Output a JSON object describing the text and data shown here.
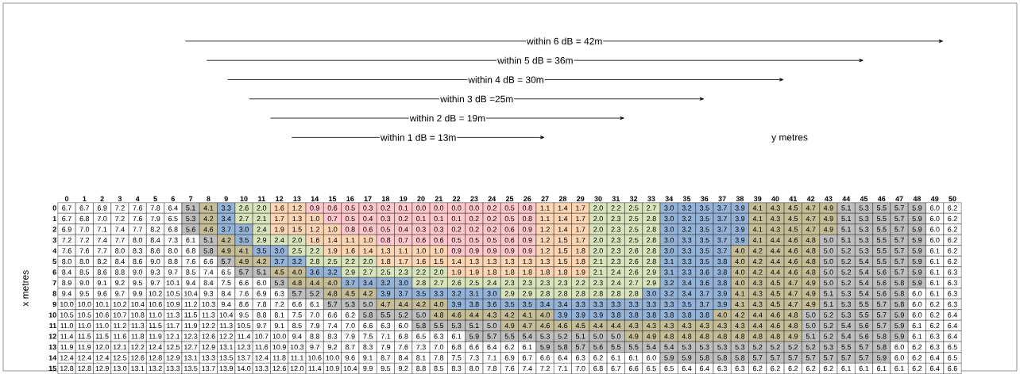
{
  "chart_data": {
    "type": "heatmap",
    "ylabel": "x metres",
    "categories": [
      "0",
      "1",
      "2",
      "3",
      "4",
      "5",
      "6",
      "7",
      "8",
      "9",
      "10",
      "11",
      "12",
      "13",
      "14",
      "15",
      "16",
      "17",
      "18",
      "19",
      "20",
      "21",
      "22",
      "23",
      "24",
      "25",
      "26",
      "27",
      "28",
      "29",
      "30",
      "31",
      "32",
      "33",
      "34",
      "35",
      "36",
      "37",
      "38",
      "39",
      "40",
      "41",
      "42",
      "43",
      "44",
      "45",
      "46",
      "47",
      "48",
      "49",
      "50"
    ],
    "y_categories": [
      "0",
      "1",
      "2",
      "3",
      "4",
      "5",
      "6",
      "7",
      "8",
      "9",
      "10",
      "11",
      "12",
      "13",
      "14",
      "15"
    ],
    "colors": [
      "#ffc7ce",
      "#fcd5b4",
      "#d8e4bc",
      "#95b3d7",
      "#c4bd97",
      "#bfbfbf",
      "#ffffff"
    ],
    "data_labels": true,
    "annotations": [
      "within 6 dB = 42m",
      "within 5 dB = 36m",
      "within 4 dB = 30m",
      "within 3 dB =25m",
      "within 2 dB = 19m",
      "within 1 dB = 13m",
      "y metres"
    ],
    "cells": [
      [
        6.7,
        6.7,
        6.9,
        7.2,
        7.6,
        7.8,
        6.4,
        5.1,
        4.1,
        3.3,
        2.6,
        2.0,
        1.6,
        1.2,
        0.9,
        0.6,
        0.5,
        0.3,
        0.2,
        0.1,
        0.0,
        0.0,
        0.0,
        0.0,
        0.2,
        0.5,
        0.8,
        1.1,
        1.4,
        1.7,
        2.0,
        2.2,
        2.5,
        2.7,
        3.0,
        3.2,
        3.5,
        3.7,
        3.9,
        4.1,
        4.3,
        4.5,
        4.7,
        4.9,
        5.1,
        5.3,
        5.5,
        5.7,
        5.9,
        6.0,
        6.2
      ],
      [
        6.7,
        6.8,
        7.0,
        7.2,
        7.6,
        7.9,
        6.5,
        5.3,
        4.2,
        3.4,
        2.7,
        2.1,
        1.7,
        1.3,
        1.0,
        0.7,
        0.5,
        0.4,
        0.3,
        0.2,
        0.1,
        0.1,
        0.1,
        0.2,
        0.2,
        0.5,
        0.8,
        1.1,
        1.4,
        1.7,
        2.0,
        2.3,
        2.5,
        2.8,
        3.0,
        3.2,
        3.5,
        3.7,
        3.9,
        4.1,
        4.3,
        4.5,
        4.7,
        4.9,
        5.1,
        5.3,
        5.5,
        5.7,
        5.9,
        6.0,
        6.2
      ],
      [
        6.9,
        7.0,
        7.1,
        7.4,
        7.7,
        8.2,
        6.8,
        5.6,
        4.6,
        3.7,
        3.0,
        2.4,
        1.9,
        1.5,
        1.2,
        1.0,
        0.8,
        0.6,
        0.5,
        0.4,
        0.3,
        0.3,
        0.2,
        0.2,
        0.2,
        0.6,
        0.9,
        1.2,
        1.4,
        1.7,
        2.0,
        2.3,
        2.5,
        2.8,
        3.0,
        3.2,
        3.5,
        3.7,
        3.9,
        4.1,
        4.3,
        4.5,
        4.7,
        4.9,
        5.1,
        5.3,
        5.5,
        5.7,
        5.9,
        6.0,
        6.2
      ],
      [
        7.2,
        7.2,
        7.4,
        7.7,
        8.0,
        8.4,
        7.3,
        6.1,
        5.1,
        4.2,
        3.5,
        2.9,
        2.4,
        2.0,
        1.6,
        1.4,
        1.1,
        1.0,
        0.8,
        0.7,
        0.6,
        0.6,
        0.5,
        0.5,
        0.5,
        0.6,
        0.9,
        1.2,
        1.5,
        1.7,
        2.0,
        2.3,
        2.5,
        2.8,
        3.0,
        3.3,
        3.5,
        3.7,
        3.9,
        4.1,
        4.4,
        4.6,
        4.8,
        5.0,
        5.1,
        5.3,
        5.5,
        5.7,
        5.9,
        6.0,
        6.2
      ],
      [
        7.6,
        7.6,
        7.7,
        8.0,
        8.3,
        8.6,
        8.0,
        6.8,
        5.8,
        4.9,
        4.1,
        3.5,
        3.0,
        2.5,
        2.2,
        1.9,
        1.6,
        1.4,
        1.3,
        1.1,
        1.0,
        1.0,
        0.9,
        0.9,
        0.9,
        0.9,
        0.9,
        1.2,
        1.5,
        1.8,
        2.0,
        2.3,
        2.6,
        2.8,
        3.0,
        3.3,
        3.5,
        3.7,
        4.0,
        4.2,
        4.4,
        4.6,
        4.8,
        5.0,
        5.2,
        5.3,
        5.5,
        5.7,
        5.9,
        6.1,
        6.2
      ],
      [
        8.0,
        8.0,
        8.2,
        8.4,
        8.6,
        9.0,
        8.8,
        7.6,
        6.6,
        5.7,
        4.9,
        4.2,
        3.7,
        3.2,
        2.8,
        2.5,
        2.2,
        2.0,
        1.8,
        1.7,
        1.6,
        1.5,
        1.4,
        1.3,
        1.3,
        1.3,
        1.3,
        1.3,
        1.5,
        1.8,
        2.1,
        2.3,
        2.6,
        2.8,
        3.1,
        3.3,
        3.5,
        3.8,
        4.0,
        4.2,
        4.4,
        4.6,
        4.8,
        5.0,
        5.2,
        5.4,
        5.5,
        5.7,
        5.9,
        6.1,
        6.2
      ],
      [
        8.4,
        8.5,
        8.6,
        8.8,
        9.0,
        9.3,
        9.7,
        8.5,
        7.4,
        6.5,
        5.7,
        5.1,
        4.5,
        4.0,
        3.6,
        3.2,
        2.9,
        2.7,
        2.5,
        2.3,
        2.2,
        2.0,
        1.9,
        1.9,
        1.8,
        1.8,
        1.8,
        1.8,
        1.8,
        1.9,
        2.1,
        2.4,
        2.6,
        2.9,
        3.1,
        3.3,
        3.6,
        3.8,
        4.0,
        4.2,
        4.4,
        4.6,
        4.8,
        5.0,
        5.2,
        5.4,
        5.6,
        5.7,
        5.9,
        6.1,
        6.3
      ],
      [
        8.9,
        9.0,
        9.1,
        9.2,
        9.5,
        9.7,
        10.1,
        9.4,
        8.4,
        7.5,
        6.6,
        6.0,
        5.3,
        4.8,
        4.4,
        4.0,
        3.7,
        3.4,
        3.2,
        3.0,
        2.8,
        2.7,
        2.6,
        2.5,
        2.4,
        2.3,
        2.3,
        2.3,
        2.3,
        2.2,
        2.3,
        2.4,
        2.7,
        2.9,
        3.2,
        3.4,
        3.6,
        3.8,
        4.0,
        4.3,
        4.5,
        4.7,
        4.9,
        5.0,
        5.2,
        5.4,
        5.6,
        5.8,
        5.9,
        6.1,
        6.3
      ],
      [
        9.4,
        9.5,
        9.6,
        9.7,
        9.9,
        10.2,
        10.5,
        10.4,
        9.3,
        8.4,
        7.6,
        6.9,
        6.3,
        5.7,
        5.2,
        4.8,
        4.5,
        4.2,
        3.9,
        3.7,
        3.5,
        3.3,
        3.2,
        3.1,
        3.0,
        2.9,
        2.9,
        2.8,
        2.8,
        2.8,
        2.8,
        2.8,
        2.8,
        3.0,
        3.2,
        3.4,
        3.7,
        3.9,
        4.1,
        4.3,
        4.5,
        4.7,
        4.9,
        5.1,
        5.3,
        5.4,
        5.6,
        5.8,
        6.0,
        6.1,
        6.3
      ],
      [
        10.0,
        10.0,
        10.1,
        10.2,
        10.4,
        10.6,
        10.9,
        11.2,
        10.3,
        9.4,
        8.6,
        7.8,
        7.2,
        6.6,
        6.1,
        5.7,
        5.3,
        5.0,
        4.7,
        4.4,
        4.2,
        4.0,
        3.9,
        3.8,
        3.6,
        3.5,
        3.5,
        3.4,
        3.4,
        3.3,
        3.3,
        3.3,
        3.3,
        3.3,
        3.3,
        3.5,
        3.7,
        3.9,
        4.1,
        4.3,
        4.5,
        4.7,
        4.9,
        5.1,
        5.3,
        5.5,
        5.7,
        5.8,
        6.0,
        6.2,
        6.3
      ],
      [
        10.5,
        10.5,
        10.6,
        10.7,
        10.8,
        11.0,
        11.3,
        11.5,
        11.3,
        10.4,
        9.5,
        8.8,
        8.1,
        7.5,
        7.0,
        6.6,
        6.2,
        5.8,
        5.5,
        5.2,
        5.0,
        4.8,
        4.6,
        4.4,
        4.3,
        4.2,
        4.1,
        4.0,
        3.9,
        3.9,
        3.9,
        3.8,
        3.8,
        3.8,
        3.8,
        3.8,
        3.8,
        4.0,
        4.2,
        4.4,
        4.6,
        4.8,
        5.0,
        5.2,
        5.3,
        5.5,
        5.7,
        5.9,
        6.0,
        6.2,
        6.4
      ],
      [
        11.0,
        11.0,
        11.0,
        11.2,
        11.3,
        11.5,
        11.7,
        11.9,
        12.2,
        11.3,
        10.5,
        9.7,
        9.1,
        8.5,
        7.9,
        7.4,
        7.0,
        6.6,
        6.3,
        6.0,
        5.8,
        5.5,
        5.3,
        5.1,
        5.0,
        4.9,
        4.7,
        4.6,
        4.6,
        4.5,
        4.4,
        4.4,
        4.3,
        4.3,
        4.3,
        4.3,
        4.3,
        4.3,
        4.3,
        4.4,
        4.6,
        4.8,
        5.0,
        5.2,
        5.4,
        5.6,
        5.7,
        5.9,
        6.1,
        6.2,
        6.4
      ],
      [
        11.4,
        11.5,
        11.5,
        11.6,
        11.8,
        11.9,
        12.1,
        12.3,
        12.6,
        12.2,
        11.4,
        10.7,
        10.0,
        9.4,
        8.8,
        8.3,
        7.9,
        7.5,
        7.1,
        6.8,
        6.5,
        6.3,
        6.1,
        5.9,
        5.7,
        5.5,
        5.4,
        5.3,
        5.2,
        5.1,
        5.0,
        5.0,
        4.9,
        4.9,
        4.8,
        4.8,
        4.8,
        4.8,
        4.8,
        4.8,
        4.8,
        4.9,
        5.1,
        5.2,
        5.4,
        5.6,
        5.8,
        5.9,
        6.1,
        6.3,
        6.4
      ],
      [
        11.9,
        11.9,
        12.0,
        12.1,
        12.2,
        12.4,
        12.5,
        12.7,
        12.9,
        13.1,
        12.3,
        11.6,
        10.9,
        10.3,
        9.7,
        9.2,
        8.7,
        8.3,
        7.9,
        7.6,
        7.3,
        7.0,
        6.8,
        6.6,
        6.4,
        6.2,
        6.1,
        5.9,
        5.8,
        5.7,
        5.6,
        5.5,
        5.5,
        5.4,
        5.4,
        5.3,
        5.3,
        5.3,
        5.3,
        5.2,
        5.2,
        5.2,
        5.2,
        5.3,
        5.5,
        5.7,
        5.8,
        6.0,
        6.2,
        6.3,
        6.5
      ],
      [
        12.4,
        12.4,
        12.4,
        12.5,
        12.6,
        12.8,
        12.9,
        13.1,
        13.3,
        13.5,
        13.7,
        12.4,
        11.8,
        11.1,
        10.6,
        10.0,
        9.6,
        9.1,
        8.7,
        8.4,
        8.1,
        7.8,
        7.5,
        7.3,
        7.1,
        6.9,
        6.7,
        6.6,
        6.4,
        6.3,
        6.2,
        6.1,
        6.1,
        6.0,
        5.9,
        5.9,
        5.8,
        5.8,
        5.8,
        5.7,
        5.7,
        5.7,
        5.7,
        5.7,
        5.7,
        5.7,
        5.9,
        6.0,
        6.2,
        6.4,
        6.5
      ],
      [
        12.8,
        12.8,
        12.9,
        13.0,
        13.1,
        13.2,
        13.3,
        13.5,
        13.7,
        13.9,
        14.0,
        13.3,
        12.6,
        12.0,
        11.4,
        10.9,
        10.4,
        9.9,
        9.5,
        9.2,
        8.8,
        8.5,
        8.3,
        8.0,
        7.8,
        7.6,
        7.4,
        7.2,
        7.1,
        7.0,
        6.8,
        6.7,
        6.6,
        6.5,
        6.5,
        6.4,
        6.4,
        6.3,
        6.3,
        6.2,
        6.2,
        6.2,
        6.2,
        6.2,
        6.1,
        6.1,
        6.1,
        6.1,
        6.2,
        6.4,
        6.6
      ]
    ],
    "cell_labels": [
      [
        "6.7",
        "6.7",
        "6.9",
        "7.2",
        "7.6",
        "7.8",
        "6.4",
        "5.1",
        "4.1",
        "3.3",
        "2.6",
        "2.0",
        "1.6",
        "1.2",
        "0.9",
        "0.6",
        "0.5",
        "0.3",
        "0.2",
        "0.1",
        "0.0",
        "0.0",
        "0.0",
        "0.0",
        "0.2",
        "0.5",
        "0.8",
        "1.1",
        "1.4",
        "1.7",
        "2.0",
        "2.2",
        "2.5",
        "2.7",
        "3.0",
        "3.2",
        "3.5",
        "3.7",
        "3.9",
        "4.1",
        "4.3",
        "4.5",
        "4.7",
        "4.9",
        "5.1",
        "5.3",
        "5.5",
        "5.7",
        "5.9",
        "6.0",
        "6.2"
      ],
      [
        "6.7",
        "6.8",
        "7.0",
        "7.2",
        "7.6",
        "7.9",
        "6.5",
        "5.3",
        "4.2",
        "3.4",
        "2.7",
        "2.1",
        "1.7",
        "1.3",
        "1.0",
        "0.7",
        "0.5",
        "0.4",
        "0.3",
        "0.2",
        "0.1",
        "0.1",
        "0.1",
        "0.2",
        "0.2",
        "0.5",
        "0.8",
        "1.1",
        "1.4",
        "1.7",
        "2.0",
        "2.3",
        "2.5",
        "2.8",
        "3.0",
        "3.2",
        "3.5",
        "3.7",
        "3.9",
        "4.1",
        "4.3",
        "4.5",
        "4.7",
        "4.9",
        "5.1",
        "5.3",
        "5.5",
        "5.7",
        "5.9",
        "6.0",
        "6.2"
      ],
      [
        "6.9",
        "7.0",
        "7.1",
        "7.4",
        "7.7",
        "8.2",
        "6.8",
        "5.6",
        "4.6",
        "3.7",
        "3.0",
        "2.4",
        "1.9",
        "1.5",
        "1.2",
        "1.0",
        "0.8",
        "0.6",
        "0.5",
        "0.4",
        "0.3",
        "0.3",
        "0.2",
        "0.2",
        "0.2",
        "0.6",
        "0.9",
        "1.2",
        "1.4",
        "1.7",
        "2.0",
        "2.3",
        "2.5",
        "2.8",
        "3.0",
        "3.2",
        "3.5",
        "3.7",
        "3.9",
        "4.1",
        "4.3",
        "4.5",
        "4.7",
        "4.9",
        "5.1",
        "5.3",
        "5.5",
        "5.7",
        "5.9",
        "6.0",
        "6.2"
      ],
      [
        "7.2",
        "7.2",
        "7.4",
        "7.7",
        "8.0",
        "8.4",
        "7.3",
        "6.1",
        "5.1",
        "4.2",
        "3.5",
        "2.9",
        "2.4",
        "2.0",
        "1.6",
        "1.4",
        "1.1",
        "1.0",
        "0.8",
        "0.7",
        "0.6",
        "0.6",
        "0.5",
        "0.5",
        "0.5",
        "0.6",
        "0.9",
        "1.2",
        "1.5",
        "1.7",
        "2.0",
        "2.3",
        "2.5",
        "2.8",
        "3.0",
        "3.3",
        "3.5",
        "3.7",
        "3.9",
        "4.1",
        "4.4",
        "4.6",
        "4.8",
        "5.0",
        "5.1",
        "5.3",
        "5.5",
        "5.7",
        "5.9",
        "6.0",
        "6.2"
      ],
      [
        "7.6",
        "7.6",
        "7.7",
        "8.0",
        "8.3",
        "8.6",
        "8.0",
        "6.8",
        "5.8",
        "4.9",
        "4.1",
        "3.5",
        "3.0",
        "2.5",
        "2.2",
        "1.9",
        "1.6",
        "1.4",
        "1.3",
        "1.1",
        "1.0",
        "1.0",
        "0.9",
        "0.9",
        "0.9",
        "0.9",
        "0.9",
        "1.2",
        "1.5",
        "1.8",
        "2.0",
        "2.3",
        "2.6",
        "2.8",
        "3.0",
        "3.3",
        "3.5",
        "3.7",
        "4.0",
        "4.2",
        "4.4",
        "4.6",
        "4.8",
        "5.0",
        "5.2",
        "5.3",
        "5.5",
        "5.7",
        "5.9",
        "6.1",
        "6.2"
      ],
      [
        "8.0",
        "8.0",
        "8.2",
        "8.4",
        "8.6",
        "9.0",
        "8.8",
        "7.6",
        "6.6",
        "5.7",
        "4.9",
        "4.2",
        "3.7",
        "3.2",
        "2.8",
        "2.5",
        "2.2",
        "2.0",
        "1.8",
        "1.7",
        "1.6",
        "1.5",
        "1.4",
        "1.3",
        "1.3",
        "1.3",
        "1.3",
        "1.3",
        "1.5",
        "1.8",
        "2.1",
        "2.3",
        "2.6",
        "2.8",
        "3.1",
        "3.3",
        "3.5",
        "3.8",
        "4.0",
        "4.2",
        "4.4",
        "4.6",
        "4.8",
        "5.0",
        "5.2",
        "5.4",
        "5.5",
        "5.7",
        "5.9",
        "6.1",
        "6.2"
      ],
      [
        "8.4",
        "8.5",
        "8.6",
        "8.8",
        "9.0",
        "9.3",
        "9.7",
        "8.5",
        "7.4",
        "6.5",
        "5.7",
        "5.1",
        "4.5",
        "4.0",
        "3.6",
        "3.2",
        "2.9",
        "2.7",
        "2.5",
        "2.3",
        "2.2",
        "2.0",
        "1.9",
        "1.9",
        "1.8",
        "1.8",
        "1.8",
        "1.8",
        "1.8",
        "1.9",
        "2.1",
        "2.4",
        "2.6",
        "2.9",
        "3.1",
        "3.3",
        "3.6",
        "3.8",
        "4.0",
        "4.2",
        "4.4",
        "4.6",
        "4.8",
        "5.0",
        "5.2",
        "5.4",
        "5.6",
        "5.7",
        "5.9",
        "6.1",
        "6.3"
      ],
      [
        "8.9",
        "9.0",
        "9.1",
        "9.2",
        "9.5",
        "9.7",
        "10.1",
        "9.4",
        "8.4",
        "7.5",
        "6.6",
        "6.0",
        "5.3",
        "4.8",
        "4.4",
        "4.0",
        "3.7",
        "3.4",
        "3.2",
        "3.0",
        "2.8",
        "2.7",
        "2.6",
        "2.5",
        "2.4",
        "2.3",
        "2.3",
        "2.3",
        "2.3",
        "2.2",
        "2.3",
        "2.4",
        "2.7",
        "2.9",
        "3.2",
        "3.4",
        "3.6",
        "3.8",
        "4.0",
        "4.3",
        "4.5",
        "4.7",
        "4.9",
        "5.0",
        "5.2",
        "5.4",
        "5.6",
        "5.8",
        "5.9",
        "6.1",
        "6.3"
      ],
      [
        "9.4",
        "9.5",
        "9.6",
        "9.7",
        "9.9",
        "10.2",
        "10.5",
        "10.4",
        "9.3",
        "8.4",
        "7.6",
        "6.9",
        "6.3",
        "5.7",
        "5.2",
        "4.8",
        "4.5",
        "4.2",
        "3.9",
        "3.7",
        "3.5",
        "3.3",
        "3.2",
        "3.1",
        "3.0",
        "2.9",
        "2.9",
        "2.8",
        "2.8",
        "2.8",
        "2.8",
        "2.8",
        "2.8",
        "3.0",
        "3.2",
        "3.4",
        "3.7",
        "3.9",
        "4.1",
        "4.3",
        "4.5",
        "4.7",
        "4.9",
        "5.1",
        "5.3",
        "5.4",
        "5.6",
        "5.8",
        "6.0",
        "6.1",
        "6.3"
      ],
      [
        "10.0",
        "10.0",
        "10.1",
        "10.2",
        "10.4",
        "10.6",
        "10.9",
        "11.2",
        "10.3",
        "9.4",
        "8.6",
        "7.8",
        "7.2",
        "6.6",
        "6.1",
        "5.7",
        "5.3",
        "5.0",
        "4.7",
        "4.4",
        "4.2",
        "4.0",
        "3.9",
        "3.8",
        "3.6",
        "3.5",
        "3.5",
        "3.4",
        "3.4",
        "3.3",
        "3.3",
        "3.3",
        "3.3",
        "3.3",
        "3.3",
        "3.5",
        "3.7",
        "3.9",
        "4.1",
        "4.3",
        "4.5",
        "4.7",
        "4.9",
        "5.1",
        "5.3",
        "5.5",
        "5.7",
        "5.8",
        "6.0",
        "6.2",
        "6.3"
      ],
      [
        "10.5",
        "10.5",
        "10.6",
        "10.7",
        "10.8",
        "11.0",
        "11.3",
        "11.5",
        "11.3",
        "10.4",
        "9.5",
        "8.8",
        "8.1",
        "7.5",
        "7.0",
        "6.6",
        "6.2",
        "5.8",
        "5.5",
        "5.2",
        "5.0",
        "4.8",
        "4.6",
        "4.4",
        "4.3",
        "4.2",
        "4.1",
        "4.0",
        "3.9",
        "3.9",
        "3.9",
        "3.8",
        "3.8",
        "3.8",
        "3.8",
        "3.8",
        "3.8",
        "4.0",
        "4.2",
        "4.4",
        "4.6",
        "4.8",
        "5.0",
        "5.2",
        "5.3",
        "5.5",
        "5.7",
        "5.9",
        "6.0",
        "6.2",
        "6.4"
      ],
      [
        "11.0",
        "11.0",
        "11.0",
        "11.2",
        "11.3",
        "11.5",
        "11.7",
        "11.9",
        "12.2",
        "11.3",
        "10.5",
        "9.7",
        "9.1",
        "8.5",
        "7.9",
        "7.4",
        "7.0",
        "6.6",
        "6.3",
        "6.0",
        "5.8",
        "5.5",
        "5.3",
        "5.1",
        "5.0",
        "4.9",
        "4.7",
        "4.6",
        "4.6",
        "4.5",
        "4.4",
        "4.4",
        "4.3",
        "4.3",
        "4.3",
        "4.3",
        "4.3",
        "4.3",
        "4.3",
        "4.4",
        "4.6",
        "4.8",
        "5.0",
        "5.2",
        "5.4",
        "5.6",
        "5.7",
        "5.9",
        "6.1",
        "6.2",
        "6.4"
      ],
      [
        "11.4",
        "11.5",
        "11.5",
        "11.6",
        "11.8",
        "11.9",
        "12.1",
        "12.3",
        "12.6",
        "12.2",
        "11.4",
        "10.7",
        "10.0",
        "9.4",
        "8.8",
        "8.3",
        "7.9",
        "7.5",
        "7.1",
        "6.8",
        "6.5",
        "6.3",
        "6.1",
        "5.9",
        "5.7",
        "5.5",
        "5.4",
        "5.3",
        "5.2",
        "5.1",
        "5.0",
        "5.0",
        "4.9",
        "4.9",
        "4.8",
        "4.8",
        "4.8",
        "4.8",
        "4.8",
        "4.8",
        "4.8",
        "4.9",
        "5.1",
        "5.2",
        "5.4",
        "5.6",
        "5.8",
        "5.9",
        "6.1",
        "6.3",
        "6.4"
      ],
      [
        "11.9",
        "11.9",
        "12.0",
        "12.1",
        "12.2",
        "12.4",
        "12.5",
        "12.7",
        "12.9",
        "13.1",
        "12.3",
        "11.6",
        "10.9",
        "10.3",
        "9.7",
        "9.2",
        "8.7",
        "8.3",
        "7.9",
        "7.6",
        "7.3",
        "7.0",
        "6.8",
        "6.6",
        "6.4",
        "6.2",
        "6.1",
        "5.9",
        "5.8",
        "5.7",
        "5.6",
        "5.5",
        "5.5",
        "5.4",
        "5.4",
        "5.3",
        "5.3",
        "5.3",
        "5.3",
        "5.2",
        "5.2",
        "5.2",
        "5.2",
        "5.3",
        "5.5",
        "5.7",
        "5.8",
        "6.0",
        "6.2",
        "6.3",
        "6.5"
      ],
      [
        "12.4",
        "12.4",
        "12.4",
        "12.5",
        "12.6",
        "12.8",
        "12.9",
        "13.1",
        "13.3",
        "13.5",
        "13.7",
        "12.4",
        "11.8",
        "11.1",
        "10.6",
        "10.0",
        "9.6",
        "9.1",
        "8.7",
        "8.4",
        "8.1",
        "7.8",
        "7.5",
        "7.3",
        "7.1",
        "6.9",
        "6.7",
        "6.6",
        "6.4",
        "6.3",
        "6.2",
        "6.1",
        "6.1",
        "6.0",
        "5.9",
        "5.9",
        "5.8",
        "5.8",
        "5.8",
        "5.7",
        "5.7",
        "5.7",
        "5.7",
        "5.7",
        "5.7",
        "5.7",
        "5.9",
        "6.0",
        "6.2",
        "6.4",
        "6.5"
      ],
      [
        "12.8",
        "12.8",
        "12.9",
        "13.0",
        "13.1",
        "13.2",
        "13.3",
        "13.5",
        "13.7",
        "13.9",
        "14.0",
        "13.3",
        "12.6",
        "12.0",
        "11.4",
        "10.9",
        "10.4",
        "9.9",
        "9.5",
        "9.2",
        "8.8",
        "8.5",
        "8.3",
        "8.0",
        "7.8",
        "7.6",
        "7.4",
        "7.2",
        "7.1",
        "7.0",
        "6.8",
        "6.7",
        "6.6",
        "6.5",
        "6.5",
        "6.4",
        "6.4",
        "6.3",
        "6.3",
        "6.2",
        "6.2",
        "6.2",
        "6.2",
        "6.2",
        "6.1",
        "6.1",
        "6.1",
        "6.1",
        "6.2",
        "6.4",
        "6.6"
      ]
    ]
  }
}
